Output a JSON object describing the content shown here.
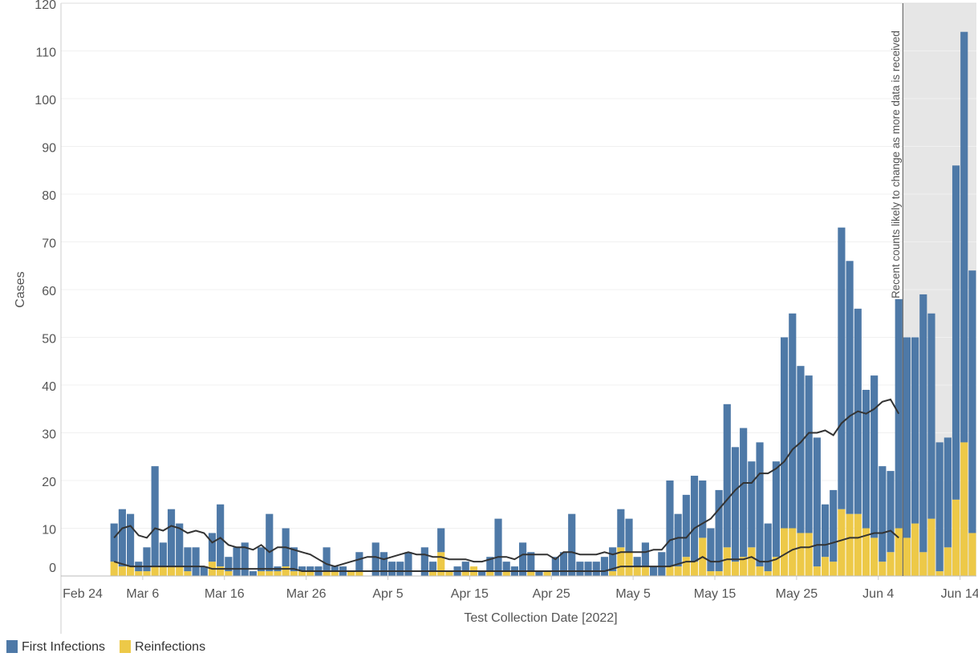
{
  "chart_data": {
    "type": "stacked_bar",
    "y_label": "Cases",
    "x_label": "Test Collection Date [2022]",
    "annotation": {
      "text": "Recent counts likely to change as more data is received",
      "from": "2022-06-07"
    },
    "xlim": [
      "2022-02-24",
      "2022-06-16"
    ],
    "xticks": [
      {
        "value": "2022-02-24",
        "label": "Feb 24"
      },
      {
        "value": "2022-03-06",
        "label": "Mar 6"
      },
      {
        "value": "2022-03-16",
        "label": "Mar 16"
      },
      {
        "value": "2022-03-26",
        "label": "Mar 26"
      },
      {
        "value": "2022-04-05",
        "label": "Apr 5"
      },
      {
        "value": "2022-04-15",
        "label": "Apr 15"
      },
      {
        "value": "2022-04-25",
        "label": "Apr 25"
      },
      {
        "value": "2022-05-05",
        "label": "May 5"
      },
      {
        "value": "2022-05-15",
        "label": "May 15"
      },
      {
        "value": "2022-05-25",
        "label": "May 25"
      },
      {
        "value": "2022-06-04",
        "label": "Jun 4"
      },
      {
        "value": "2022-06-14",
        "label": "Jun 14"
      }
    ],
    "ylim": [
      0,
      120
    ],
    "yticks": [
      0,
      10,
      20,
      30,
      40,
      50,
      60,
      70,
      80,
      90,
      100,
      110,
      120
    ],
    "grid": true,
    "x": [
      "2022-03-02",
      "2022-03-03",
      "2022-03-04",
      "2022-03-05",
      "2022-03-06",
      "2022-03-07",
      "2022-03-08",
      "2022-03-09",
      "2022-03-10",
      "2022-03-11",
      "2022-03-12",
      "2022-03-13",
      "2022-03-14",
      "2022-03-15",
      "2022-03-16",
      "2022-03-17",
      "2022-03-18",
      "2022-03-19",
      "2022-03-20",
      "2022-03-21",
      "2022-03-22",
      "2022-03-23",
      "2022-03-24",
      "2022-03-25",
      "2022-03-26",
      "2022-03-27",
      "2022-03-28",
      "2022-03-29",
      "2022-03-30",
      "2022-03-31",
      "2022-04-01",
      "2022-04-02",
      "2022-04-03",
      "2022-04-04",
      "2022-04-05",
      "2022-04-06",
      "2022-04-07",
      "2022-04-08",
      "2022-04-09",
      "2022-04-10",
      "2022-04-11",
      "2022-04-12",
      "2022-04-13",
      "2022-04-14",
      "2022-04-15",
      "2022-04-16",
      "2022-04-17",
      "2022-04-18",
      "2022-04-19",
      "2022-04-20",
      "2022-04-21",
      "2022-04-22",
      "2022-04-23",
      "2022-04-24",
      "2022-04-25",
      "2022-04-26",
      "2022-04-27",
      "2022-04-28",
      "2022-04-29",
      "2022-04-30",
      "2022-05-01",
      "2022-05-02",
      "2022-05-03",
      "2022-05-04",
      "2022-05-05",
      "2022-05-06",
      "2022-05-07",
      "2022-05-08",
      "2022-05-09",
      "2022-05-10",
      "2022-05-11",
      "2022-05-12",
      "2022-05-13",
      "2022-05-14",
      "2022-05-15",
      "2022-05-16",
      "2022-05-17",
      "2022-05-18",
      "2022-05-19",
      "2022-05-20",
      "2022-05-21",
      "2022-05-22",
      "2022-05-23",
      "2022-05-24",
      "2022-05-25",
      "2022-05-26",
      "2022-05-27",
      "2022-05-28",
      "2022-05-29",
      "2022-05-30",
      "2022-05-31",
      "2022-06-01",
      "2022-06-02",
      "2022-06-03",
      "2022-06-04",
      "2022-06-05",
      "2022-06-06",
      "2022-06-07",
      "2022-06-08",
      "2022-06-09",
      "2022-06-10",
      "2022-06-11",
      "2022-06-12",
      "2022-06-13",
      "2022-06-14",
      "2022-06-15"
    ],
    "series": [
      {
        "name": "First Infections",
        "color": "#4e79a7",
        "values": [
          8,
          12,
          11,
          2,
          5,
          21,
          5,
          12,
          9,
          5,
          6,
          2,
          6,
          13,
          3,
          6,
          7,
          1,
          5,
          12,
          1,
          8,
          5,
          1,
          1,
          2,
          5,
          1,
          2,
          0,
          4,
          0,
          7,
          5,
          3,
          3,
          5,
          0,
          6,
          2,
          5,
          0,
          2,
          2,
          0,
          1,
          3,
          12,
          2,
          2,
          7,
          4,
          1,
          0,
          4,
          5,
          13,
          3,
          3,
          3,
          4,
          5,
          8,
          7,
          2,
          5,
          2,
          5,
          18,
          11,
          13,
          18,
          12,
          9,
          17,
          30,
          24,
          27,
          18,
          26,
          10,
          20,
          40,
          45,
          35,
          33,
          27,
          11,
          15,
          59,
          53,
          43,
          29,
          34,
          20,
          17,
          48,
          42,
          39,
          54,
          43,
          27,
          23,
          70,
          86,
          55
        ]
      },
      {
        "name": "Reinfections",
        "color": "#edc948",
        "values": [
          3,
          2,
          2,
          1,
          1,
          2,
          2,
          2,
          2,
          1,
          0,
          0,
          3,
          2,
          1,
          0,
          0,
          0,
          1,
          1,
          1,
          2,
          1,
          1,
          1,
          0,
          1,
          1,
          0,
          1,
          1,
          0,
          0,
          0,
          0,
          0,
          0,
          0,
          0,
          1,
          5,
          1,
          0,
          1,
          2,
          0,
          1,
          0,
          1,
          0,
          0,
          1,
          0,
          1,
          0,
          0,
          0,
          0,
          0,
          0,
          0,
          1,
          6,
          5,
          2,
          2,
          0,
          0,
          2,
          2,
          4,
          3,
          8,
          1,
          1,
          6,
          3,
          4,
          6,
          2,
          1,
          4,
          10,
          10,
          9,
          9,
          2,
          4,
          3,
          14,
          13,
          13,
          10,
          8,
          3,
          5,
          10,
          8,
          11,
          5,
          12,
          1,
          6,
          16,
          28,
          9
        ]
      }
    ],
    "lines": [
      {
        "color": "#333333",
        "values": [
          8,
          10,
          10.5,
          8.5,
          8,
          10,
          9.5,
          10.5,
          10,
          9,
          9.5,
          9,
          7,
          8,
          6.5,
          6,
          6,
          5.5,
          6.5,
          5,
          6,
          6,
          5.5,
          5,
          4.5,
          3.5,
          2.5,
          2,
          2.5,
          3,
          3.5,
          4,
          4,
          3.5,
          4,
          4.5,
          5,
          4.5,
          4.5,
          4,
          4,
          3.5,
          3.5,
          3.5,
          3,
          3,
          3.5,
          4,
          4,
          3.5,
          4.5,
          4.5,
          4.5,
          4.5,
          3.5,
          5,
          5,
          4.5,
          4.5,
          4.5,
          5,
          4.5,
          5,
          5,
          5,
          5,
          5.5,
          5.5,
          7.5,
          8,
          8,
          10,
          11,
          12,
          14,
          16,
          18,
          19.5,
          19.5,
          21.5,
          21.5,
          22.5,
          24,
          26.5,
          28,
          30,
          30,
          30.5,
          29.5,
          32,
          33.5,
          34.5,
          34,
          35,
          36.5,
          37,
          34,
          null,
          null,
          null,
          null,
          null,
          null,
          null,
          null,
          null
        ]
      },
      {
        "color": "#333333",
        "values": [
          3,
          2.5,
          2,
          2,
          2,
          2,
          2,
          2,
          2,
          2,
          2,
          2,
          1.5,
          1.5,
          1.5,
          1.5,
          1.5,
          1.5,
          1.5,
          1.5,
          1.5,
          1.5,
          1.5,
          1,
          1,
          1,
          1,
          1,
          1,
          1,
          1,
          1,
          1,
          1,
          1,
          1,
          1,
          1,
          1,
          1,
          1,
          1,
          1,
          1,
          1,
          1,
          1,
          1,
          1,
          1,
          1,
          1,
          1,
          1,
          1,
          1,
          1,
          1,
          1,
          1,
          1,
          1.5,
          2,
          2,
          2,
          2,
          2,
          2,
          2,
          2.5,
          3,
          3,
          4,
          3,
          3,
          3.5,
          3.5,
          3.5,
          4,
          3,
          3,
          3.5,
          4.5,
          5.5,
          6,
          6,
          6.5,
          6.5,
          7,
          7.5,
          8,
          8,
          8.5,
          9,
          9,
          9.5,
          8,
          null,
          null,
          null,
          null,
          null,
          null,
          null,
          null,
          null
        ]
      }
    ]
  }
}
